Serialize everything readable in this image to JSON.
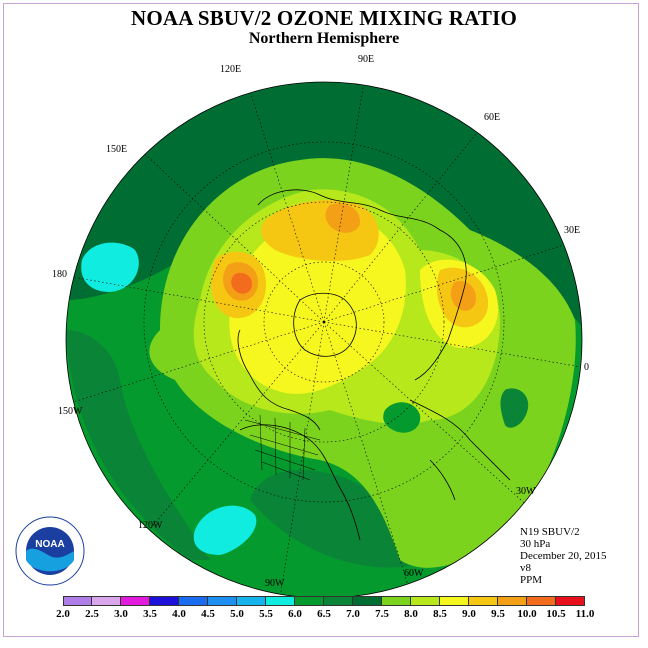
{
  "title": "NOAA SBUV/2 OZONE MIXING RATIO",
  "subtitle": "Northern Hemisphere",
  "longitude_labels": [
    "90E",
    "60E",
    "30E",
    "0",
    "30W",
    "60W",
    "90W",
    "120W",
    "150W",
    "180",
    "150E",
    "120E"
  ],
  "info": {
    "satellite": "N19 SBUV/2",
    "level": "30 hPa",
    "date": "December 20, 2015",
    "version": "v8",
    "units": "PPM"
  },
  "logo": {
    "text": "NOAA",
    "ring_text": "NATIONAL OCEANIC AND ATMOSPHERIC ADMINISTRATION · U.S. DEPARTMENT OF COMMERCE"
  },
  "colorbar": {
    "ticks": [
      "2.0",
      "2.5",
      "3.0",
      "3.5",
      "4.0",
      "4.5",
      "5.0",
      "5.5",
      "6.0",
      "6.5",
      "7.0",
      "7.5",
      "8.0",
      "8.5",
      "9.0",
      "9.5",
      "10.0",
      "10.5",
      "11.0"
    ],
    "colors": [
      "#b07ee8",
      "#d9a6ec",
      "#e21bdc",
      "#1d10d8",
      "#1a6cef",
      "#1d8ff0",
      "#15b4ee",
      "#10ece0",
      "#049a2d",
      "#0a8437",
      "#006d33",
      "#7bd31e",
      "#b6e81b",
      "#f5f71e",
      "#f6c712",
      "#f3a016",
      "#f36b1c",
      "#e8101a",
      "#8f5a38"
    ]
  },
  "map_colors": {
    "dark_green": "#006d33",
    "green": "#0a8437",
    "mid_green": "#049a2d",
    "light_green": "#7bd31e",
    "yellow_green": "#b6e81b",
    "yellow": "#f5f71e",
    "gold": "#f6c712",
    "orange": "#f3a016",
    "red_orange": "#f36b1c",
    "cyan": "#10ece0"
  }
}
